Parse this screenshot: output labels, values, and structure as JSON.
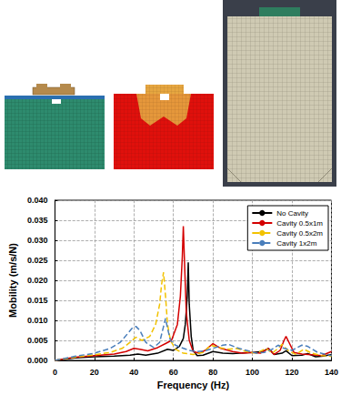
{
  "chart_data": {
    "type": "line",
    "xlabel": "Frequency (Hz)",
    "ylabel": "Mobility (m/s/N)",
    "xlim": [
      0,
      140
    ],
    "xticks": [
      0,
      20,
      40,
      60,
      80,
      100,
      120,
      140
    ],
    "ylim": [
      0,
      0.04
    ],
    "yticks": [
      {
        "value": 0,
        "label": "0.000"
      },
      {
        "value": 0.005,
        "label": "0.005"
      },
      {
        "value": 0.01,
        "label": "0.010"
      },
      {
        "value": 0.015,
        "label": "0.015"
      },
      {
        "value": 0.02,
        "label": "0.020"
      },
      {
        "value": 0.025,
        "label": "0.025"
      },
      {
        "value": 0.03,
        "label": "0.030"
      },
      {
        "value": 0.035,
        "label": "0.035"
      },
      {
        "value": 0.04,
        "label": "0.040"
      }
    ],
    "grid": true,
    "legend": "top-right",
    "series": [
      {
        "name": "No Cavity",
        "color": "#000000",
        "line_style": "solid",
        "x": [
          0,
          5,
          10,
          20,
          30,
          38,
          42,
          46,
          52,
          57,
          60,
          63,
          65,
          66,
          67,
          67.5,
          68,
          69,
          70,
          72,
          75,
          80,
          85,
          90,
          95,
          100,
          105,
          108,
          111,
          115,
          117,
          120,
          125,
          128,
          132,
          136,
          140
        ],
        "values": [
          0,
          0.0003,
          0.0006,
          0.0009,
          0.0011,
          0.0013,
          0.0016,
          0.0013,
          0.0018,
          0.0028,
          0.0025,
          0.0035,
          0.0055,
          0.009,
          0.016,
          0.0245,
          0.014,
          0.006,
          0.0025,
          0.0012,
          0.0013,
          0.0022,
          0.0018,
          0.0017,
          0.0019,
          0.002,
          0.0022,
          0.003,
          0.0015,
          0.0018,
          0.0024,
          0.0012,
          0.0013,
          0.0017,
          0.0009,
          0.0011,
          0.0015
        ]
      },
      {
        "name": "Cavity 0.5x1m",
        "color": "#d40000",
        "line_style": "solid",
        "x": [
          0,
          5,
          10,
          20,
          30,
          36,
          40,
          43,
          47,
          52,
          56,
          59,
          62,
          63.5,
          64.5,
          65,
          65.5,
          66.5,
          68,
          70,
          73,
          76,
          80,
          84,
          90,
          95,
          100,
          104,
          108,
          111,
          114,
          116,
          117,
          118,
          121,
          125,
          130,
          135,
          140
        ],
        "values": [
          0,
          0.0004,
          0.0008,
          0.0012,
          0.0016,
          0.0022,
          0.003,
          0.0028,
          0.0024,
          0.0032,
          0.0042,
          0.005,
          0.009,
          0.016,
          0.026,
          0.0335,
          0.026,
          0.012,
          0.005,
          0.0022,
          0.0018,
          0.0025,
          0.0042,
          0.003,
          0.0022,
          0.0018,
          0.002,
          0.0018,
          0.003,
          0.0015,
          0.0025,
          0.005,
          0.006,
          0.005,
          0.002,
          0.0016,
          0.0014,
          0.0012,
          0.0022
        ]
      },
      {
        "name": "Cavity 0.5x2m",
        "color": "#f2c200",
        "line_style": "dashed",
        "x": [
          0,
          5,
          10,
          20,
          28,
          34,
          38,
          41,
          44,
          48,
          51,
          53,
          54,
          55,
          56,
          57,
          58.5,
          61,
          65,
          70,
          75,
          79,
          83,
          88,
          92,
          97,
          102,
          107,
          110,
          113,
          115,
          118,
          122,
          126,
          130,
          135,
          140
        ],
        "values": [
          0,
          0.0004,
          0.0008,
          0.0014,
          0.002,
          0.003,
          0.0045,
          0.0058,
          0.005,
          0.006,
          0.009,
          0.014,
          0.019,
          0.022,
          0.016,
          0.009,
          0.005,
          0.0028,
          0.0018,
          0.0015,
          0.002,
          0.0038,
          0.0032,
          0.0028,
          0.003,
          0.0022,
          0.0018,
          0.003,
          0.0018,
          0.003,
          0.004,
          0.0025,
          0.0015,
          0.0028,
          0.0018,
          0.0012,
          0.001
        ]
      },
      {
        "name": "Cavity 1x2m",
        "color": "#4a7ebb",
        "line_style": "dashed",
        "x": [
          0,
          5,
          10,
          20,
          28,
          33,
          37,
          39,
          41,
          43,
          46,
          50,
          53,
          55,
          56,
          57,
          58.5,
          61,
          64,
          68,
          72,
          76,
          80,
          85,
          88,
          92,
          97,
          102,
          106,
          110,
          113,
          116,
          120,
          125,
          128,
          133,
          140
        ],
        "values": [
          0,
          0.0005,
          0.001,
          0.0018,
          0.003,
          0.0045,
          0.0068,
          0.008,
          0.0085,
          0.0075,
          0.0045,
          0.0032,
          0.0045,
          0.0085,
          0.0105,
          0.008,
          0.005,
          0.0038,
          0.0032,
          0.0025,
          0.0022,
          0.0024,
          0.003,
          0.0038,
          0.004,
          0.0032,
          0.0025,
          0.0018,
          0.002,
          0.0028,
          0.0038,
          0.003,
          0.0025,
          0.0038,
          0.0035,
          0.002,
          0.0012
        ]
      }
    ]
  }
}
